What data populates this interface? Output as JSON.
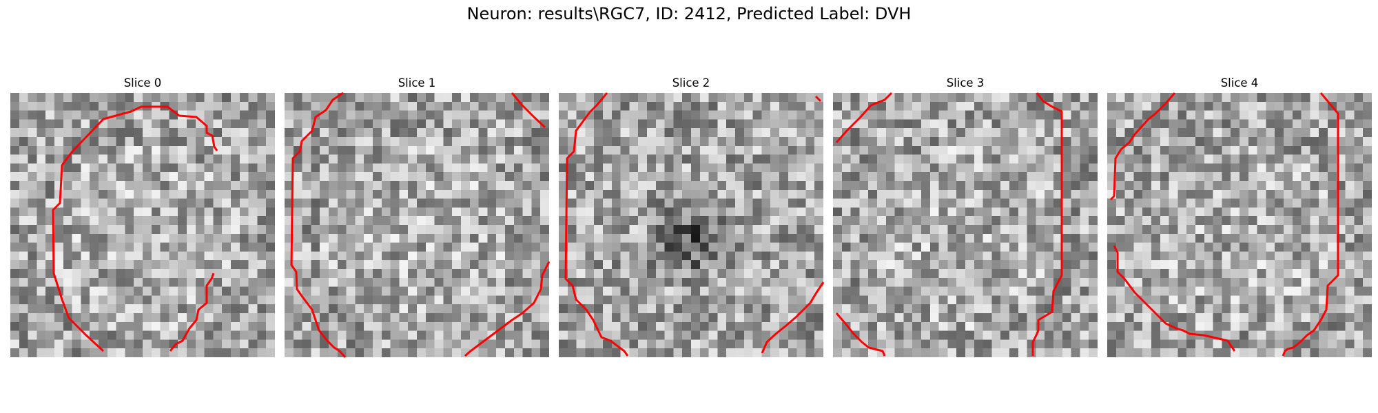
{
  "title": "Neuron: results\\RGC7, ID: 2412, Predicted Label: DVH",
  "contour_color": "#ff0000",
  "slices": [
    {
      "label": "Slice 0",
      "dark_center": false
    },
    {
      "label": "Slice 1",
      "dark_center": false
    },
    {
      "label": "Slice 2",
      "dark_center": true
    },
    {
      "label": "Slice 3",
      "dark_center": false
    },
    {
      "label": "Slice 4",
      "dark_center": false
    }
  ]
}
